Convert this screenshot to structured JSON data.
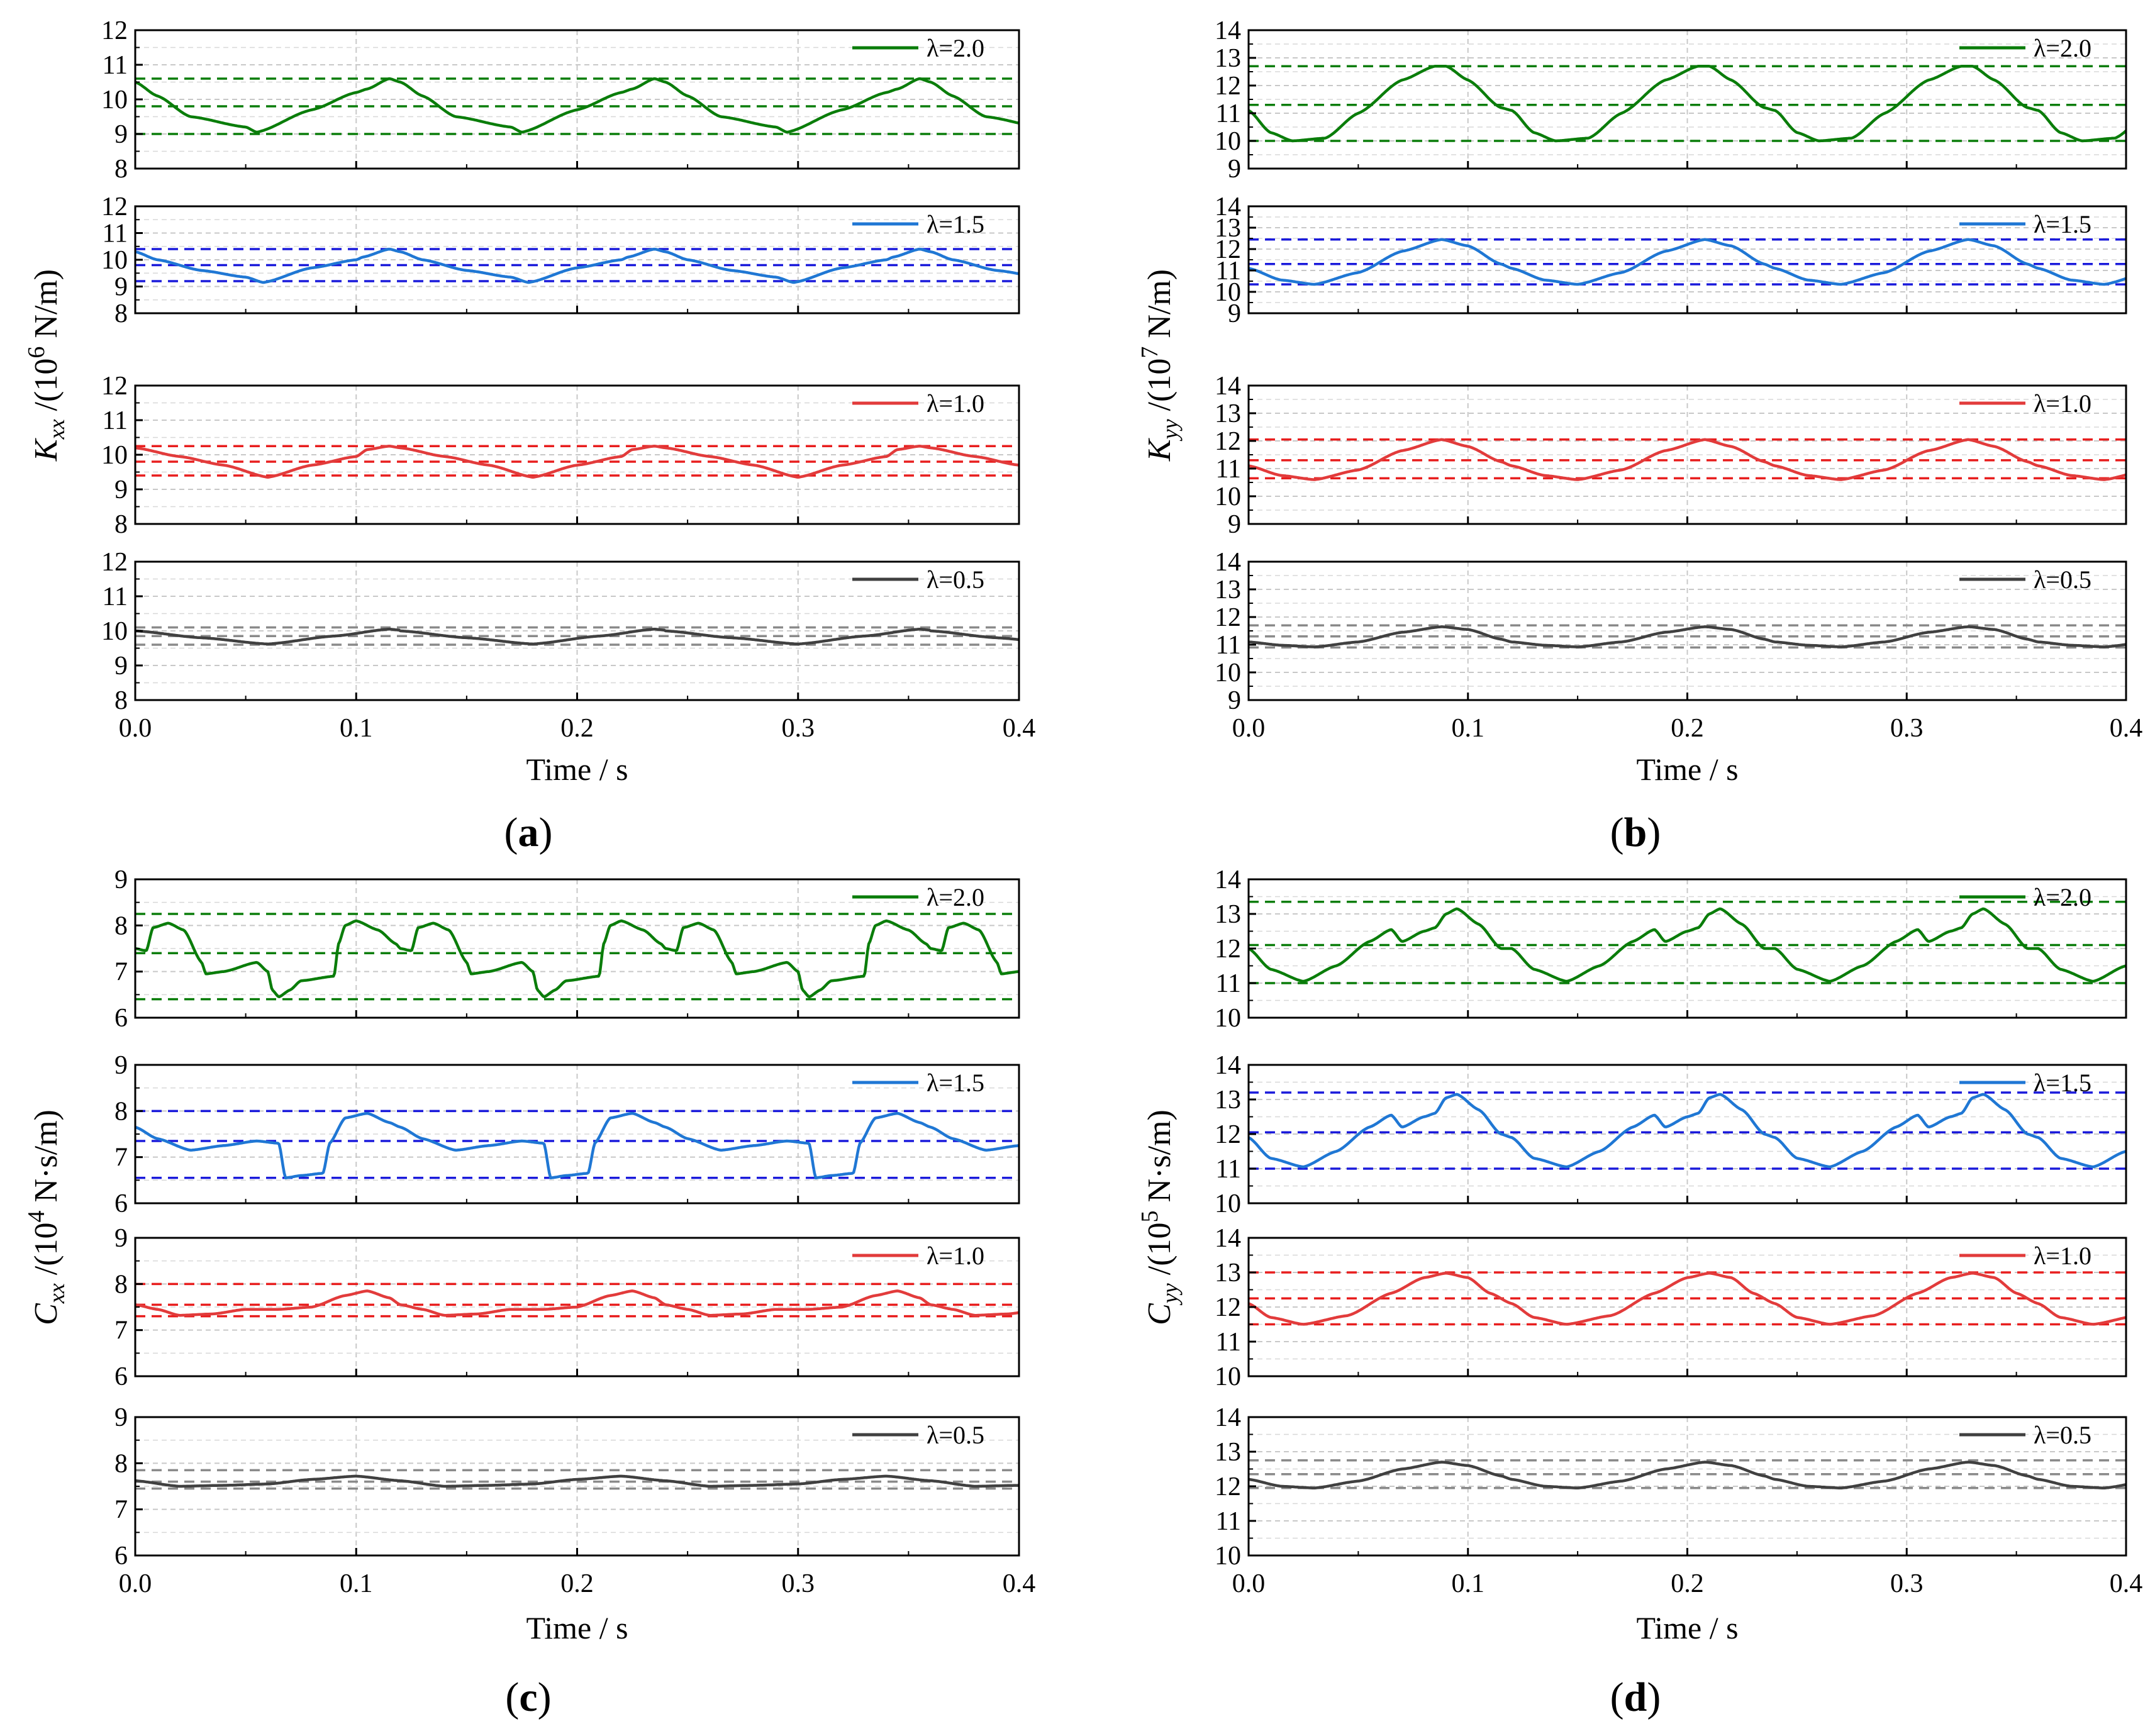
{
  "chart_data": [
    {
      "panel": "(a)",
      "type": "line",
      "xlabel": "Time / s",
      "ylabel_main": "K",
      "ylabel_sub": "xx",
      "ylabel_unit": "/(10",
      "ylabel_exp": "6",
      "ylabel_tail": "N/m)",
      "xlim": [
        0,
        0.4
      ],
      "xticks": [
        "0.0",
        "0.1",
        "0.2",
        "0.3",
        "0.4"
      ],
      "ylim": [
        8,
        12
      ],
      "yticks": [
        "8",
        "9",
        "10",
        "11",
        "12"
      ],
      "period": 0.12,
      "subplots": [
        {
          "legend": "λ=2.0",
          "color": "#0a7d0a",
          "dash_color": "#0a7d0a",
          "x": [
            0,
            0.01,
            0.025,
            0.05,
            0.055,
            0.08,
            0.1,
            0.105,
            0.115,
            0.12
          ],
          "y": [
            10.5,
            10.1,
            9.5,
            9.2,
            9.05,
            9.7,
            10.2,
            10.3,
            10.6,
            10.5
          ],
          "refs": [
            10.6,
            9.8,
            9.0
          ]
        },
        {
          "legend": "λ=1.5",
          "color": "#1f77d4",
          "dash_color": "#1a1adb",
          "x": [
            0,
            0.01,
            0.03,
            0.05,
            0.058,
            0.08,
            0.1,
            0.103,
            0.115,
            0.12
          ],
          "y": [
            10.3,
            10.0,
            9.6,
            9.35,
            9.15,
            9.7,
            10.0,
            10.1,
            10.4,
            10.3
          ],
          "refs": [
            10.4,
            9.8,
            9.2
          ]
        },
        {
          "legend": "λ=1.0",
          "color": "#e23b3b",
          "dash_color": "#e81e1e",
          "x": [
            0,
            0.02,
            0.04,
            0.06,
            0.08,
            0.1,
            0.105,
            0.115,
            0.12
          ],
          "y": [
            10.2,
            9.95,
            9.7,
            9.35,
            9.7,
            9.95,
            10.15,
            10.25,
            10.2
          ],
          "refs": [
            10.25,
            9.8,
            9.4
          ]
        },
        {
          "legend": "λ=0.5",
          "color": "#404040",
          "dash_color": "#8a8a8a",
          "x": [
            0,
            0.03,
            0.06,
            0.09,
            0.115,
            0.12
          ],
          "y": [
            10.0,
            9.8,
            9.62,
            9.85,
            10.05,
            10.02
          ],
          "refs": [
            10.1,
            9.85,
            9.6
          ]
        }
      ]
    },
    {
      "panel": "(b)",
      "type": "line",
      "xlabel": "Time / s",
      "ylabel_main": "K",
      "ylabel_sub": "yy",
      "ylabel_unit": "/(10",
      "ylabel_exp": "7",
      "ylabel_tail": "N/m)",
      "xlim": [
        0,
        0.4
      ],
      "xticks": [
        "0.0",
        "0.1",
        "0.2",
        "0.3",
        "0.4"
      ],
      "ylim": [
        9,
        14
      ],
      "yticks": [
        "9",
        "10",
        "11",
        "12",
        "13",
        "14"
      ],
      "period": 0.12,
      "subplots": [
        {
          "legend": "λ=2.0",
          "color": "#0a7d0a",
          "dash_color": "#0a7d0a",
          "x": [
            0,
            0.01,
            0.02,
            0.035,
            0.05,
            0.07,
            0.085,
            0.09,
            0.1,
            0.115,
            0.12
          ],
          "y": [
            11.1,
            10.3,
            10.0,
            10.1,
            11.0,
            12.2,
            12.7,
            12.7,
            12.2,
            11.2,
            11.1
          ],
          "refs": [
            12.7,
            11.3,
            10.0
          ]
        },
        {
          "legend": "λ=1.5",
          "color": "#1f77d4",
          "dash_color": "#1a1adb",
          "x": [
            0,
            0.015,
            0.03,
            0.05,
            0.07,
            0.088,
            0.1,
            0.115,
            0.12
          ],
          "y": [
            11.1,
            10.55,
            10.35,
            10.9,
            11.9,
            12.45,
            12.15,
            11.3,
            11.1
          ],
          "refs": [
            12.45,
            11.3,
            10.35
          ]
        },
        {
          "legend": "λ=1.0",
          "color": "#e23b3b",
          "dash_color": "#e81e1e",
          "x": [
            0,
            0.015,
            0.03,
            0.05,
            0.07,
            0.088,
            0.1,
            0.115,
            0.12
          ],
          "y": [
            11.1,
            10.75,
            10.6,
            10.95,
            11.65,
            12.05,
            11.8,
            11.25,
            11.1
          ],
          "refs": [
            12.05,
            11.3,
            10.65
          ]
        },
        {
          "legend": "λ=0.5",
          "color": "#404040",
          "dash_color": "#8a8a8a",
          "x": [
            0,
            0.015,
            0.03,
            0.05,
            0.07,
            0.088,
            0.1,
            0.115,
            0.12
          ],
          "y": [
            11.1,
            10.98,
            10.92,
            11.1,
            11.45,
            11.65,
            11.55,
            11.2,
            11.1
          ],
          "refs": [
            11.7,
            11.3,
            10.9
          ]
        }
      ]
    },
    {
      "panel": "(c)",
      "type": "line",
      "xlabel": "Time / s",
      "ylabel_main": "C",
      "ylabel_sub": "xx",
      "ylabel_unit": "/(10",
      "ylabel_exp": "4",
      "ylabel_tail": "N·s/m)",
      "xlim": [
        0,
        0.4
      ],
      "xticks": [
        "0.0",
        "0.1",
        "0.2",
        "0.3",
        "0.4"
      ],
      "ylim": [
        6,
        9
      ],
      "yticks": [
        "6",
        "7",
        "8",
        "9"
      ],
      "period": 0.12,
      "subplots": [
        {
          "legend": "λ=2.0",
          "color": "#0a7d0a",
          "dash_color": "#0a7d0a",
          "x": [
            0,
            0.005,
            0.008,
            0.015,
            0.022,
            0.03,
            0.032,
            0.04,
            0.055,
            0.06,
            0.062,
            0.065,
            0.07,
            0.075,
            0.09,
            0.092,
            0.095,
            0.1,
            0.11,
            0.118,
            0.12
          ],
          "y": [
            7.5,
            7.45,
            7.95,
            8.05,
            7.9,
            7.2,
            6.95,
            7.0,
            7.2,
            7.0,
            6.6,
            6.45,
            6.6,
            6.8,
            6.9,
            7.6,
            8.0,
            8.1,
            7.9,
            7.6,
            7.5
          ],
          "refs": [
            8.25,
            7.4,
            6.4
          ]
        },
        {
          "legend": "λ=1.5",
          "color": "#1f77d4",
          "dash_color": "#1a1adb",
          "x": [
            0,
            0.01,
            0.025,
            0.04,
            0.055,
            0.065,
            0.068,
            0.075,
            0.085,
            0.088,
            0.095,
            0.105,
            0.115,
            0.12
          ],
          "y": [
            7.65,
            7.4,
            7.15,
            7.25,
            7.35,
            7.3,
            6.55,
            6.6,
            6.65,
            7.3,
            7.85,
            7.95,
            7.75,
            7.65
          ],
          "refs": [
            8.0,
            7.35,
            6.55
          ]
        },
        {
          "legend": "λ=1.0",
          "color": "#e23b3b",
          "dash_color": "#e81e1e",
          "x": [
            0,
            0.01,
            0.02,
            0.035,
            0.05,
            0.065,
            0.08,
            0.095,
            0.105,
            0.115,
            0.12
          ],
          "y": [
            7.55,
            7.45,
            7.32,
            7.35,
            7.45,
            7.45,
            7.5,
            7.75,
            7.85,
            7.7,
            7.55
          ],
          "refs": [
            8.0,
            7.55,
            7.3
          ]
        },
        {
          "legend": "λ=0.5",
          "color": "#404040",
          "dash_color": "#8a8a8a",
          "x": [
            0,
            0.02,
            0.04,
            0.06,
            0.08,
            0.1,
            0.12
          ],
          "y": [
            7.62,
            7.5,
            7.52,
            7.55,
            7.65,
            7.72,
            7.62
          ],
          "refs": [
            7.85,
            7.6,
            7.45
          ]
        }
      ]
    },
    {
      "panel": "(d)",
      "type": "line",
      "xlabel": "Time / s",
      "ylabel_main": "C",
      "ylabel_sub": "yy",
      "ylabel_unit": "/(10",
      "ylabel_exp": "5",
      "ylabel_tail": "N·s/m)",
      "xlim": [
        0,
        0.4
      ],
      "xticks": [
        "0.0",
        "0.1",
        "0.2",
        "0.3",
        "0.4"
      ],
      "ylim": [
        10,
        14
      ],
      "yticks": [
        "10",
        "11",
        "12",
        "13",
        "14"
      ],
      "period": 0.12,
      "subplots": [
        {
          "legend": "λ=2.0",
          "color": "#0a7d0a",
          "dash_color": "#0a7d0a",
          "x": [
            0,
            0.01,
            0.025,
            0.04,
            0.055,
            0.065,
            0.07,
            0.08,
            0.085,
            0.09,
            0.095,
            0.105,
            0.115,
            0.12
          ],
          "y": [
            12.0,
            11.4,
            11.05,
            11.5,
            12.2,
            12.55,
            12.2,
            12.5,
            12.6,
            13.0,
            13.15,
            12.7,
            12.0,
            12.0
          ],
          "refs": [
            13.35,
            12.1,
            11.0
          ]
        },
        {
          "legend": "λ=1.5",
          "color": "#1f77d4",
          "dash_color": "#1a1adb",
          "x": [
            0,
            0.01,
            0.025,
            0.04,
            0.055,
            0.065,
            0.07,
            0.08,
            0.085,
            0.09,
            0.095,
            0.105,
            0.115,
            0.12
          ],
          "y": [
            11.9,
            11.3,
            11.05,
            11.5,
            12.2,
            12.55,
            12.2,
            12.5,
            12.6,
            13.05,
            13.15,
            12.7,
            12.0,
            11.9
          ],
          "refs": [
            13.2,
            12.05,
            11.0
          ]
        },
        {
          "legend": "λ=1.0",
          "color": "#e23b3b",
          "dash_color": "#e81e1e",
          "x": [
            0,
            0.01,
            0.025,
            0.045,
            0.065,
            0.08,
            0.09,
            0.1,
            0.11,
            0.12
          ],
          "y": [
            12.1,
            11.7,
            11.5,
            11.75,
            12.4,
            12.85,
            12.98,
            12.85,
            12.4,
            12.1
          ],
          "refs": [
            13.0,
            12.25,
            11.5
          ]
        },
        {
          "legend": "λ=0.5",
          "color": "#404040",
          "dash_color": "#8a8a8a",
          "x": [
            0,
            0.015,
            0.03,
            0.05,
            0.07,
            0.088,
            0.1,
            0.115,
            0.12
          ],
          "y": [
            12.2,
            12.0,
            11.95,
            12.15,
            12.5,
            12.7,
            12.6,
            12.3,
            12.2
          ],
          "refs": [
            12.75,
            12.35,
            11.95
          ]
        }
      ]
    }
  ]
}
